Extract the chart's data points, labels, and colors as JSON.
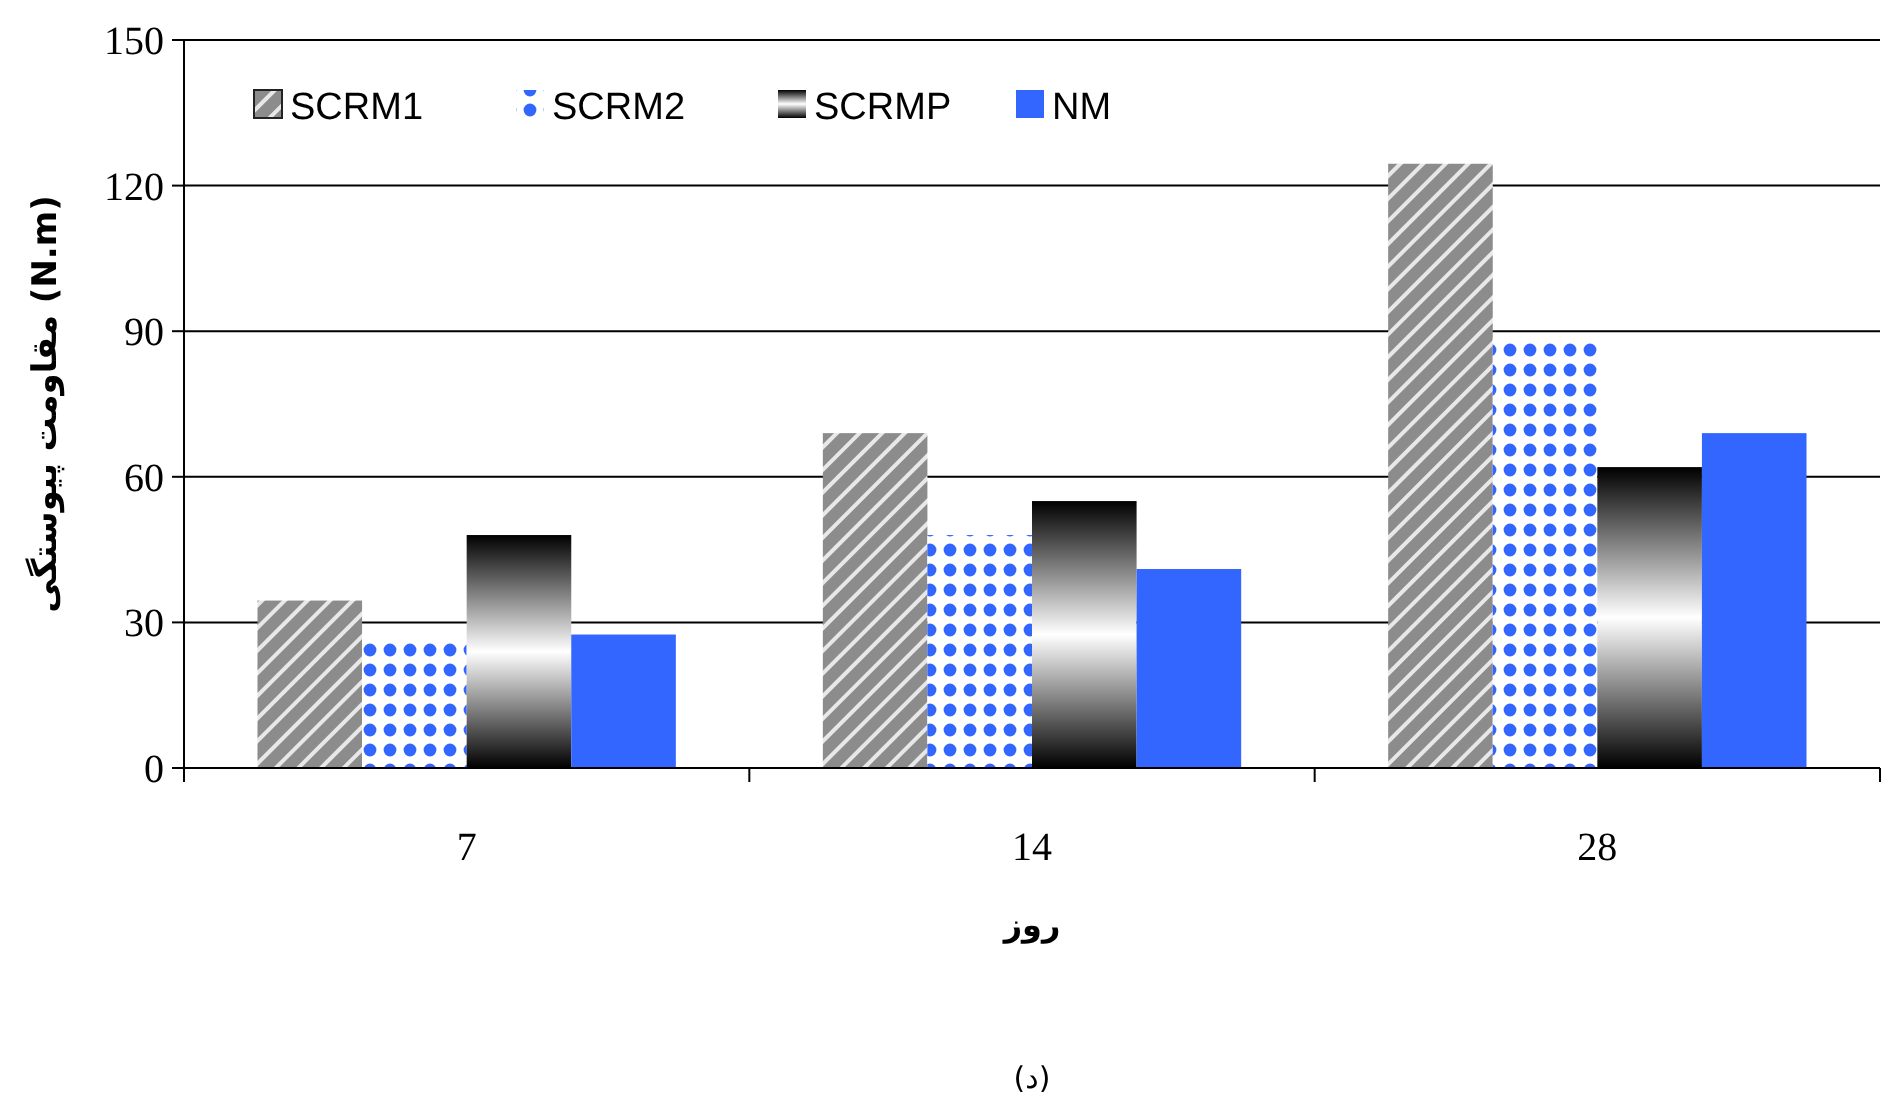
{
  "chart_data": {
    "type": "bar",
    "ylabel": "مقاومت پیوستگی (N.m)",
    "xlabel": "روز",
    "annotations": [
      "(د)"
    ],
    "categories": [
      "7",
      "14",
      "28"
    ],
    "series": [
      {
        "name": "SCRM1",
        "color": "#8c8c8c",
        "values": [
          34.5,
          69,
          124.5
        ]
      },
      {
        "name": "SCRM2",
        "color": "#3366ff",
        "values": [
          27,
          48,
          88.5
        ]
      },
      {
        "name": "SCRMP",
        "color": "#000000",
        "values": [
          48,
          55,
          62
        ]
      },
      {
        "name": "NM",
        "color": "#3366ff",
        "values": [
          27.5,
          41,
          69
        ]
      }
    ],
    "ylim": [
      0,
      150
    ],
    "yticks": [
      0,
      30,
      60,
      90,
      120,
      150
    ],
    "grid": "y",
    "legend": "top left"
  }
}
